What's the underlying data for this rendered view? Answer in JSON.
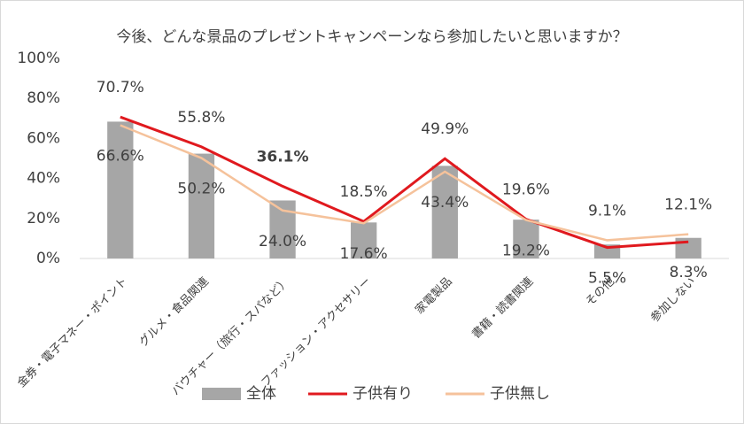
{
  "chart_data": {
    "type": "bar-line",
    "title": "今後、どんな景品のプレゼントキャンペーンなら参加したいと思いますか？",
    "categories": [
      "金券・電子マネー・ポイント",
      "グルメ・食品関連",
      "バウチャー（旅行・スパなど）",
      "ファッション・アクセサリー",
      "家電製品",
      "書籍・読書関連",
      "その他",
      "参加しない"
    ],
    "series": [
      {
        "name": "全体",
        "type": "bar",
        "color": "#a6a6a6",
        "values": [
          68.4,
          52.4,
          29,
          18,
          46.3,
          19.4,
          7,
          10.3
        ]
      },
      {
        "name": "子供有り",
        "type": "line",
        "color": "#e0191e",
        "values": [
          70.7,
          55.8,
          36.1,
          18.5,
          49.9,
          19.6,
          5.5,
          8.3
        ],
        "value_labels": [
          "70.7%",
          "55.8%",
          "36.1%",
          "18.5%",
          "49.9%",
          "19.6%",
          "5.5%",
          "8.3%"
        ]
      },
      {
        "name": "子供無し",
        "type": "line",
        "color": "#f5c29b",
        "values": [
          66.6,
          50.2,
          24.0,
          17.6,
          43.4,
          19.2,
          9.1,
          12.1
        ],
        "value_labels": [
          "66.6%",
          "50.2%",
          "24.0%",
          "17.6%",
          "43.4%",
          "19.2%",
          "9.1%",
          "12.1%"
        ]
      }
    ],
    "ylim": [
      0,
      100
    ],
    "yticks": [
      {
        "value": 0,
        "label": "0%"
      },
      {
        "value": 20,
        "label": "20%"
      },
      {
        "value": 40,
        "label": "40%"
      },
      {
        "value": 60,
        "label": "60%"
      },
      {
        "value": 80,
        "label": "80%"
      },
      {
        "value": 100,
        "label": "100%"
      }
    ]
  }
}
